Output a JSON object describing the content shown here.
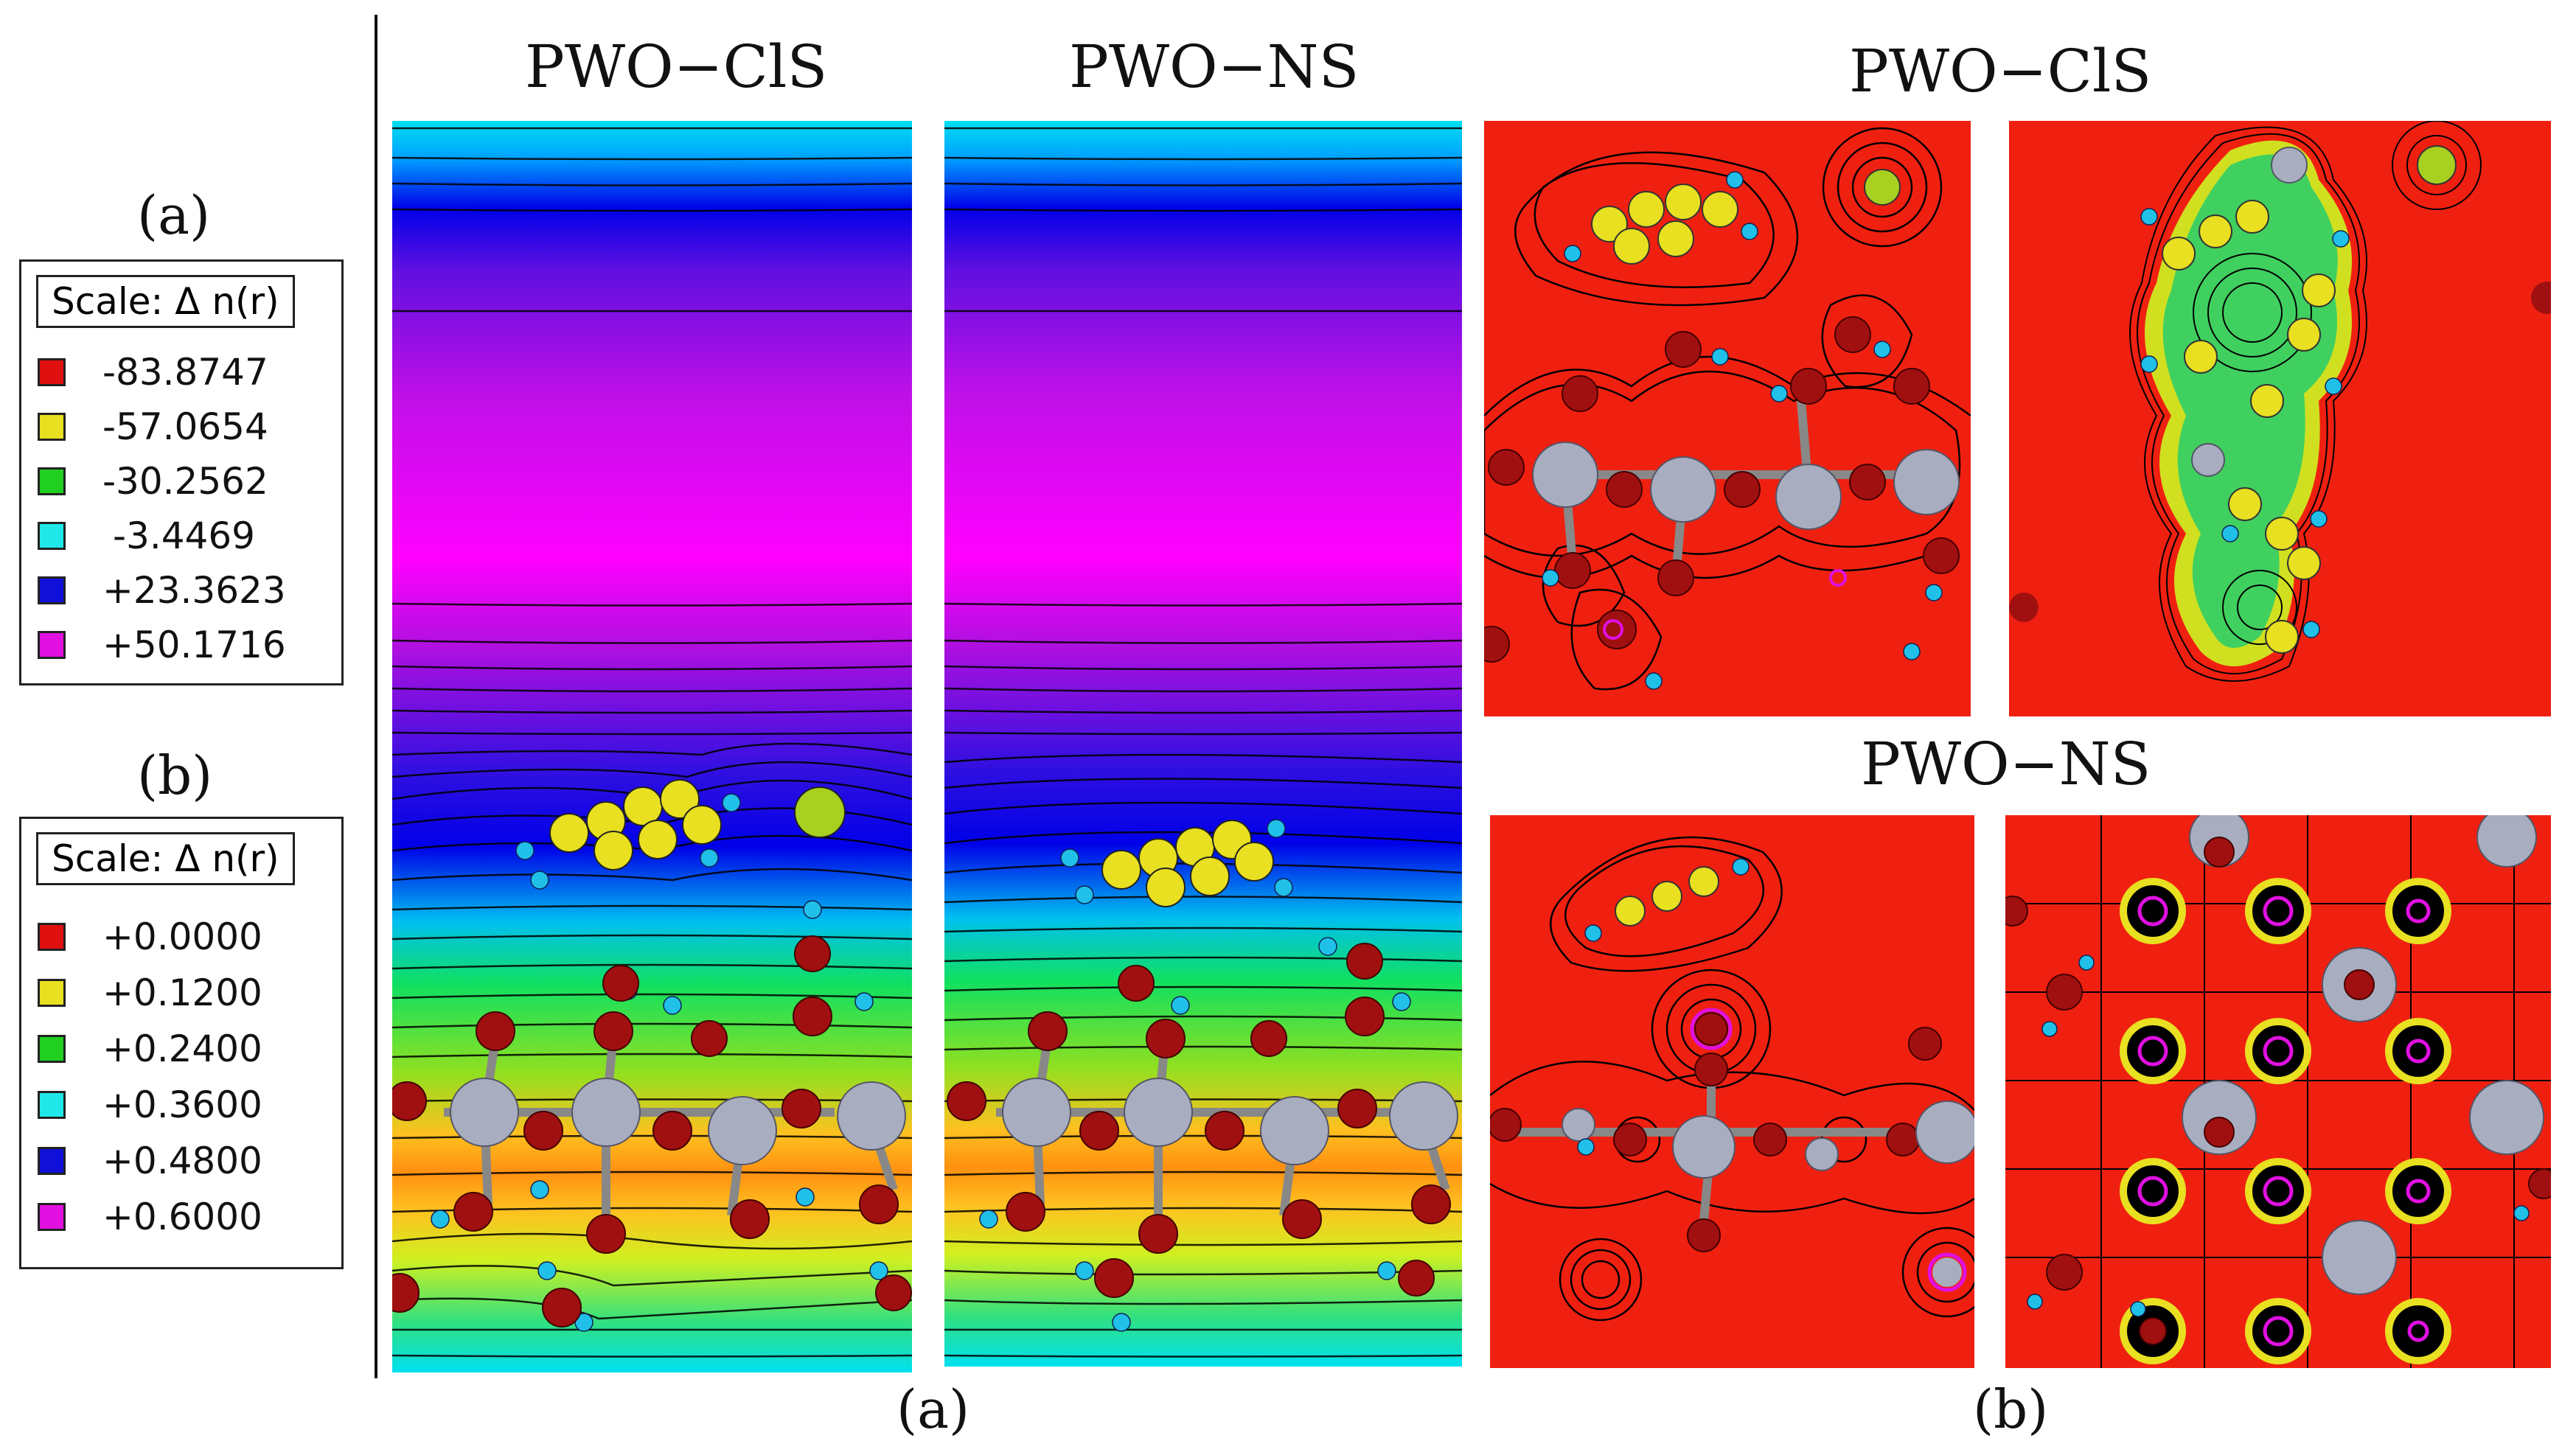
{
  "titles": {
    "panel_a_left": "PWO−ClS",
    "panel_a_right": "PWO−NS",
    "panel_b_top": "PWO−ClS",
    "panel_b_bottom": "PWO−NS"
  },
  "captions": {
    "a": "(a)",
    "b": "(b)"
  },
  "legend_a": {
    "label": "(a)",
    "header": "Scale:   Δ n(r)",
    "items": [
      {
        "value": "-83.8747",
        "color": "#e01010"
      },
      {
        "value": "-57.0654",
        "color": "#e8e020"
      },
      {
        "value": "-30.2562",
        "color": "#20d020"
      },
      {
        "value": "-3.4469",
        "color": "#20e8e8"
      },
      {
        "value": "+23.3623",
        "color": "#1010d8"
      },
      {
        "value": "+50.1716",
        "color": "#e010e0"
      }
    ]
  },
  "legend_b": {
    "label": "(b)",
    "header": "Scale:   Δ n(r)",
    "items": [
      {
        "value": "+0.0000",
        "color": "#e01010"
      },
      {
        "value": "+0.1200",
        "color": "#e8e020"
      },
      {
        "value": "+0.2400",
        "color": "#20d020"
      },
      {
        "value": "+0.3600",
        "color": "#20e8e8"
      },
      {
        "value": "+0.4800",
        "color": "#1010d8"
      },
      {
        "value": "+0.6000",
        "color": "#e010e0"
      }
    ]
  }
}
